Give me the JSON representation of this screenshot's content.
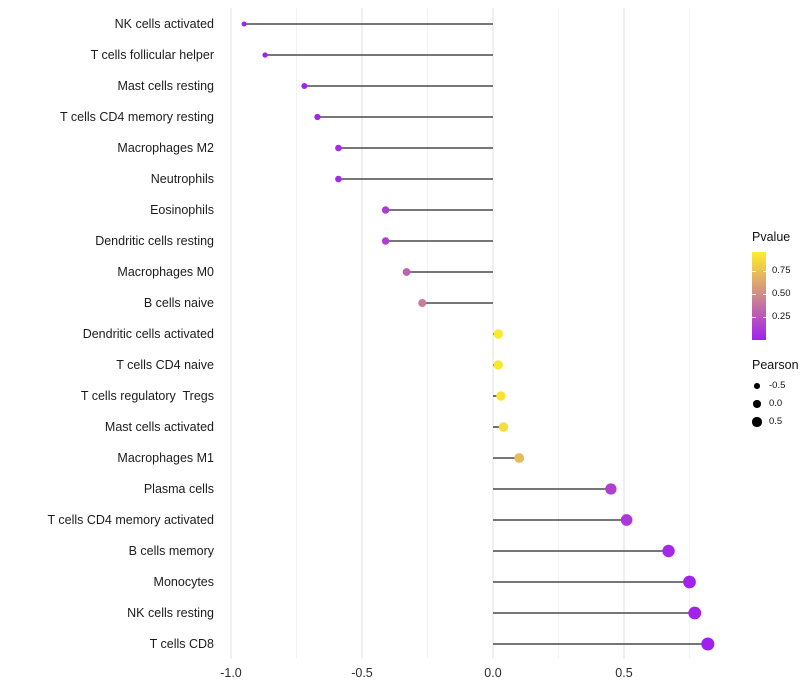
{
  "chart_data": {
    "type": "lollipop",
    "title": "",
    "xlabel": "",
    "ylabel": "",
    "xlim": [
      -1.03,
      0.9
    ],
    "x_major_ticks": [
      -1.0,
      -0.5,
      0.0,
      0.5
    ],
    "x_tick_labels": [
      "-1.0",
      "-0.5",
      "0.0",
      "0.5"
    ],
    "x_minor_ticks": [
      -0.75,
      -0.25,
      0.25,
      0.75
    ],
    "grid": "vertical-only",
    "baseline_x": 0.0,
    "categories": [
      "NK cells activated",
      "T cells follicular helper",
      "Mast cells resting",
      "T cells CD4 memory resting",
      "Macrophages M2",
      "Neutrophils",
      "Eosinophils",
      "Dendritic cells resting",
      "Macrophages M0",
      "B cells naive",
      "Dendritic cells activated",
      "T cells CD4 naive",
      "T cells regulatory  Tregs",
      "Mast cells activated",
      "Macrophages M1",
      "Plasma cells",
      "T cells CD4 memory activated",
      "B cells memory",
      "Monocytes",
      "NK cells resting",
      "T cells CD8"
    ],
    "series": [
      {
        "name": "Pearson",
        "values": [
          -0.95,
          -0.87,
          -0.72,
          -0.67,
          -0.59,
          -0.59,
          -0.41,
          -0.41,
          -0.33,
          -0.27,
          0.02,
          0.02,
          0.03,
          0.04,
          0.1,
          0.45,
          0.51,
          0.67,
          0.75,
          0.77,
          0.82
        ]
      },
      {
        "name": "Pvalue",
        "values": [
          0.001,
          0.002,
          0.01,
          0.02,
          0.04,
          0.04,
          0.13,
          0.14,
          0.3,
          0.42,
          0.93,
          0.92,
          0.9,
          0.88,
          0.72,
          0.15,
          0.11,
          0.04,
          0.02,
          0.015,
          0.005
        ]
      }
    ]
  },
  "legend": {
    "pvalue": {
      "title": "Pvalue",
      "tick_labels": [
        "0.75",
        "0.50",
        "0.25"
      ],
      "tick_values": [
        0.75,
        0.5,
        0.25
      ],
      "bar_range": [
        0,
        0.95
      ],
      "low_color": "#A020F0",
      "high_color": "#FDEE2B"
    },
    "pearson": {
      "title": "Pearson",
      "tick_labels": [
        "-0.5",
        "0.0",
        "0.5"
      ],
      "tick_values": [
        -0.5,
        0.0,
        0.5
      ],
      "key_color": "#000000"
    }
  },
  "colors": {
    "background": "#FFFFFF",
    "stem": "#4A4A4A",
    "grid_major": "#E5E5E5",
    "grid_minor": "#F2F2F2",
    "axis_text": "#2B2B2B"
  }
}
